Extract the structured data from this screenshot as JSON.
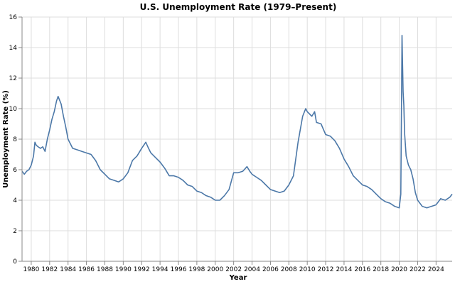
{
  "chart_data": {
    "type": "line",
    "title": "U.S. Unemployment Rate (1979–Present)",
    "xlabel": "Year",
    "ylabel": "Unemployment Rate (%)",
    "xlim": [
      1979.0,
      2025.75
    ],
    "ylim": [
      0,
      16
    ],
    "x_ticks": [
      1980,
      1982,
      1984,
      1986,
      1988,
      1990,
      1992,
      1994,
      1996,
      1998,
      2000,
      2002,
      2004,
      2006,
      2008,
      2010,
      2012,
      2014,
      2016,
      2018,
      2020,
      2022,
      2024
    ],
    "y_ticks": [
      0,
      2,
      4,
      6,
      8,
      10,
      12,
      14,
      16
    ],
    "grid": true,
    "line_color": "#4c78a8",
    "series": [
      {
        "x": [
          1979.0,
          1979.25,
          1979.5,
          1979.75,
          1980.0,
          1980.25,
          1980.4,
          1980.55,
          1980.75,
          1981.0,
          1981.25,
          1981.5,
          1981.75,
          1982.0,
          1982.25,
          1982.5,
          1982.75,
          1982.92,
          1983.25,
          1983.5,
          1983.75,
          1984.0,
          1984.5,
          1985.0,
          1985.5,
          1986.0,
          1986.5,
          1987.0,
          1987.5,
          1988.0,
          1988.5,
          1989.0,
          1989.5,
          1990.0,
          1990.5,
          1991.0,
          1991.5,
          1992.0,
          1992.45,
          1992.75,
          1993.0,
          1993.5,
          1994.0,
          1994.5,
          1995.0,
          1995.5,
          1996.0,
          1996.5,
          1997.0,
          1997.5,
          1998.0,
          1998.5,
          1999.0,
          1999.5,
          2000.0,
          2000.5,
          2001.0,
          2001.5,
          2002.0,
          2002.5,
          2003.0,
          2003.45,
          2003.75,
          2004.0,
          2004.5,
          2005.0,
          2005.5,
          2006.0,
          2006.5,
          2007.0,
          2007.5,
          2008.0,
          2008.5,
          2009.0,
          2009.5,
          2009.83,
          2010.0,
          2010.5,
          2010.8,
          2011.0,
          2011.5,
          2012.0,
          2012.5,
          2013.0,
          2013.5,
          2014.0,
          2014.5,
          2015.0,
          2015.5,
          2016.0,
          2016.5,
          2017.0,
          2017.5,
          2018.0,
          2018.5,
          2019.0,
          2019.5,
          2020.0,
          2020.17,
          2020.3,
          2020.42,
          2020.5,
          2020.58,
          2020.75,
          2021.0,
          2021.25,
          2021.5,
          2021.75,
          2022.0,
          2022.5,
          2023.0,
          2023.5,
          2024.0,
          2024.5,
          2025.0,
          2025.5,
          2025.75
        ],
        "y": [
          5.9,
          5.7,
          5.9,
          6.0,
          6.3,
          6.9,
          7.8,
          7.6,
          7.5,
          7.4,
          7.5,
          7.2,
          8.0,
          8.6,
          9.3,
          9.8,
          10.5,
          10.8,
          10.3,
          9.5,
          8.8,
          8.0,
          7.4,
          7.3,
          7.2,
          7.1,
          7.0,
          6.6,
          6.0,
          5.7,
          5.4,
          5.3,
          5.2,
          5.4,
          5.8,
          6.6,
          6.9,
          7.4,
          7.8,
          7.4,
          7.1,
          6.8,
          6.5,
          6.1,
          5.6,
          5.6,
          5.5,
          5.3,
          5.0,
          4.9,
          4.6,
          4.5,
          4.3,
          4.2,
          4.0,
          4.0,
          4.3,
          4.7,
          5.8,
          5.8,
          5.9,
          6.2,
          5.9,
          5.7,
          5.5,
          5.3,
          5.0,
          4.7,
          4.6,
          4.5,
          4.6,
          5.0,
          5.6,
          7.8,
          9.5,
          10.0,
          9.8,
          9.5,
          9.8,
          9.1,
          9.0,
          8.3,
          8.2,
          7.9,
          7.4,
          6.7,
          6.2,
          5.6,
          5.3,
          5.0,
          4.9,
          4.7,
          4.4,
          4.1,
          3.9,
          3.8,
          3.6,
          3.5,
          4.4,
          14.8,
          11.1,
          10.2,
          8.4,
          6.9,
          6.3,
          6.0,
          5.4,
          4.5,
          4.0,
          3.6,
          3.5,
          3.6,
          3.7,
          4.1,
          4.0,
          4.2,
          4.4
        ]
      }
    ]
  }
}
